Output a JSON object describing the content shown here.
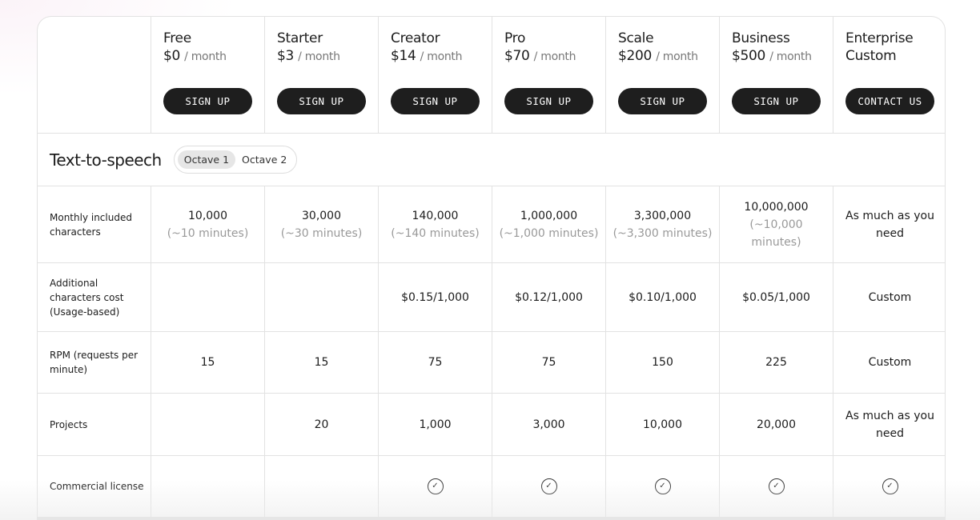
{
  "plans": [
    {
      "name": "Free",
      "price": "$0",
      "per": "/ month",
      "cta": "SIGN UP"
    },
    {
      "name": "Starter",
      "price": "$3",
      "per": "/ month",
      "cta": "SIGN UP"
    },
    {
      "name": "Creator",
      "price": "$14",
      "per": "/ month",
      "cta": "SIGN UP"
    },
    {
      "name": "Pro",
      "price": "$70",
      "per": "/ month",
      "cta": "SIGN UP"
    },
    {
      "name": "Scale",
      "price": "$200",
      "per": "/ month",
      "cta": "SIGN UP"
    },
    {
      "name": "Business",
      "price": "$500",
      "per": "/ month",
      "cta": "SIGN UP"
    },
    {
      "name": "Enterprise",
      "price": "Custom",
      "per": "",
      "cta": "CONTACT US"
    }
  ],
  "section": {
    "title": "Text-to-speech",
    "toggle": [
      "Octave 1",
      "Octave 2"
    ],
    "selected": "Octave 1"
  },
  "rows": [
    {
      "label": "Monthly included characters",
      "cells": [
        [
          "10,000",
          "(~10 minutes)"
        ],
        [
          "30,000",
          "(~30 minutes)"
        ],
        [
          "140,000",
          "(~140 minutes)"
        ],
        [
          "1,000,000",
          "(~1,000 minutes)"
        ],
        [
          "3,300,000",
          "(~3,300 minutes)"
        ],
        [
          "10,000,000",
          "(~10,000 minutes)"
        ],
        [
          "As much as you need",
          ""
        ]
      ],
      "height": 96
    },
    {
      "label": "Additional characters cost (Usage-based)",
      "cells": [
        [
          "",
          ""
        ],
        [
          "",
          ""
        ],
        [
          "$0.15/1,000",
          ""
        ],
        [
          "$0.12/1,000",
          ""
        ],
        [
          "$0.10/1,000",
          ""
        ],
        [
          "$0.05/1,000",
          ""
        ],
        [
          "Custom",
          ""
        ]
      ],
      "height": 86
    },
    {
      "label": "RPM (requests per minute)",
      "cells": [
        [
          "15",
          ""
        ],
        [
          "15",
          ""
        ],
        [
          "75",
          ""
        ],
        [
          "75",
          ""
        ],
        [
          "150",
          ""
        ],
        [
          "225",
          ""
        ],
        [
          "Custom",
          ""
        ]
      ],
      "height": 77
    },
    {
      "label": "Projects",
      "cells": [
        [
          "",
          ""
        ],
        [
          "20",
          ""
        ],
        [
          "1,000",
          ""
        ],
        [
          "3,000",
          ""
        ],
        [
          "10,000",
          ""
        ],
        [
          "20,000",
          ""
        ],
        [
          "As much as you need",
          ""
        ]
      ],
      "height": 78
    },
    {
      "label": "Commercial license",
      "checks": [
        false,
        false,
        true,
        true,
        true,
        true,
        true
      ],
      "height": 77
    }
  ]
}
